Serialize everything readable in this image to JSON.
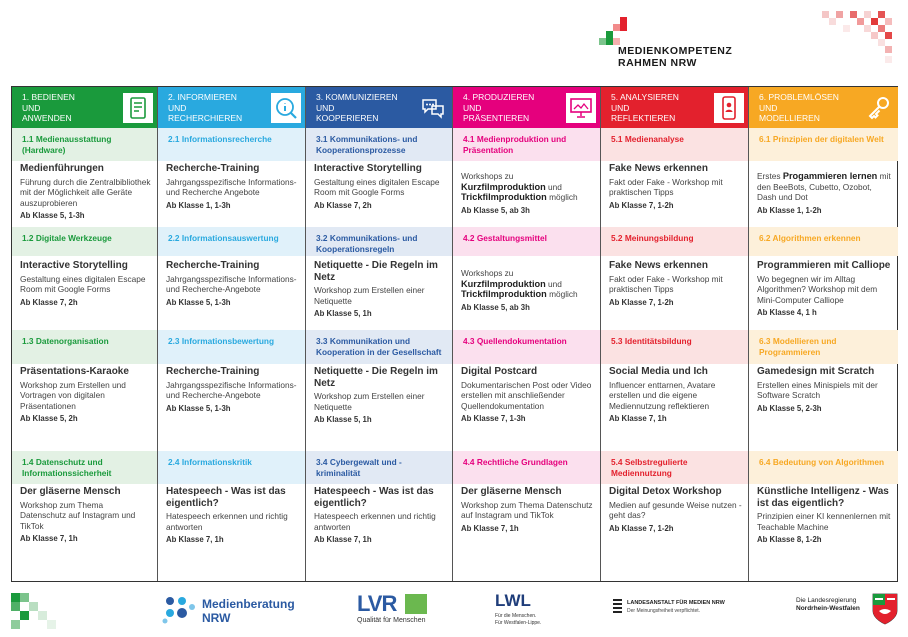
{
  "brand": {
    "line1": "MEDIENKOMPETENZ",
    "line2": "RAHMEN NRW"
  },
  "colors": {
    "green": "#1a9a3c",
    "green_light": "#e3f1e4",
    "blue": "#29a9df",
    "blue_light": "#e0f1fa",
    "navy": "#2b5aa2",
    "navy_light": "#e1e9f4",
    "magenta": "#e5007d",
    "magenta_light": "#fbe0ee",
    "red": "#e3212d",
    "red_light": "#fbe2e2",
    "orange": "#f7a823",
    "orange_light": "#fdf0da"
  },
  "columns": [
    {
      "header": [
        "1. BEDIENEN",
        "UND",
        "ANWENDEN"
      ],
      "icon": "tablet-icon",
      "subs": [
        "1.1 Medienausstattung (Hardware)",
        "1.2 Digitale Werkzeuge",
        "1.3 Datenorganisation",
        "1.4 Datenschutz und Informationssicherheit"
      ],
      "cards": [
        {
          "title": "Medienführungen",
          "desc": "Führung durch die Zentralbibliothek mit der Möglichkeit alle Geräte auszuprobieren",
          "age": "Ab Klasse 5, 1-3h"
        },
        {
          "title": "Interactive Storytelling",
          "desc": "Gestaltung eines digitalen Escape Room mit Google Forms",
          "age": "Ab Klasse 7, 2h"
        },
        {
          "title": "Präsentations-Karaoke",
          "desc": "Workshop zum Erstellen und Vortragen von digitalen Präsentationen",
          "age": "Ab Klasse 5, 2h"
        },
        {
          "title": "Der gläserne Mensch",
          "desc": "Workshop zum Thema Datenschutz auf Instagram und TikTok",
          "age": "Ab Klasse 7, 1h"
        }
      ]
    },
    {
      "header": [
        "2. INFORMIEREN",
        "UND",
        "RECHERCHIEREN"
      ],
      "icon": "magnifier-info-icon",
      "subs": [
        "2.1 Informationsrecherche",
        "2.2 Informationsauswertung",
        "2.3 Informationsbewertung",
        "2.4 Informationskritik"
      ],
      "cards": [
        {
          "title": "Recherche-Training",
          "desc": "Jahrgangsspezifische Informations- und Recherche Angebote",
          "age": "Ab Klasse 1, 1-3h"
        },
        {
          "title": "Recherche-Training",
          "desc": "Jahrgangsspezifische Informations- und Recherche-Angebote",
          "age": "Ab Klasse 5, 1-3h"
        },
        {
          "title": "Recherche-Training",
          "desc": "Jahrgangsspezifische Informations- und Recherche-Angebote",
          "age": "Ab Klasse 5, 1-3h"
        },
        {
          "title": "Hatespeech - Was ist das eigentlich?",
          "desc": "Hatespeech erkennen und richtig antworten",
          "age": "Ab Klasse 7, 1h"
        }
      ]
    },
    {
      "header": [
        "3. KOMMUNIZIEREN",
        "UND",
        "KOOPERIEREN"
      ],
      "icon": "speech-bubbles-icon",
      "subs": [
        "3.1 Kommunikations- und Kooperationsprozesse",
        "3.2 Kommunikations- und Kooperationsregeln",
        "3.3 Kommunikation und Kooperation in der Gesellschaft",
        "3.4 Cybergewalt und -kriminalität"
      ],
      "cards": [
        {
          "title": "Interactive Storytelling",
          "desc": "Gestaltung eines digitalen Escape Room mit Google Forms",
          "age": "Ab Klasse 7, 2h"
        },
        {
          "title": "Netiquette - Die Regeln im Netz",
          "desc": "Workshop zum Erstellen einer Netiquette",
          "age": "Ab Klasse 5, 1h"
        },
        {
          "title": "Netiquette - Die Regeln im Netz",
          "desc": "Workshop zum Erstellen einer Netiquette",
          "age": "Ab Klasse 5, 1h"
        },
        {
          "title": "Hatespeech - Was ist das eigentlich?",
          "desc": "Hatespeech erkennen und richtig antworten",
          "age": "Ab Klasse 7, 1h"
        }
      ]
    },
    {
      "header": [
        "4. PRODUZIEREN",
        "UND",
        "PRÄSENTIEREN"
      ],
      "icon": "presentation-screen-icon",
      "subs": [
        "4.1 Medienproduktion und Präsentation",
        "4.2 Gestaltungsmittel",
        "4.3 Quellendokumentation",
        "4.4 Rechtliche Grundlagen"
      ],
      "cards": [
        {
          "title": "",
          "desc_pre": "Workshops zu",
          "desc_bold1": "Kurzfilmproduktion",
          "desc_mid": "und",
          "desc_bold2": "Trickfilmproduktion",
          "desc_post": "möglich",
          "age": "Ab Klasse 5, ab 3h"
        },
        {
          "title": "",
          "desc_pre": "Workshops zu",
          "desc_bold1": "Kurzfilmproduktion",
          "desc_mid": "und",
          "desc_bold2": "Trickfilmproduktion",
          "desc_post": "möglich",
          "age": "Ab Klasse 5, ab 3h"
        },
        {
          "title": "Digital Postcard",
          "desc": "Dokumentarischen Post oder Video erstellen mit anschließender Quellendokumentation",
          "age": "Ab Klasse 7, 1-3h"
        },
        {
          "title": "Der gläserne Mensch",
          "desc": "Workshop zum Thema Datenschutz auf Instagram und TikTok",
          "age": "Ab Klasse 7, 1h"
        }
      ]
    },
    {
      "header": [
        "5. ANALYSIEREN",
        "UND",
        "REFLEKTIEREN"
      ],
      "icon": "smartphone-person-icon",
      "subs": [
        "5.1 Medienanalyse",
        "5.2 Meinungsbildung",
        "5.3 Identitätsbildung",
        "5.4 Selbstregulierte Mediennutzung"
      ],
      "cards": [
        {
          "title": "Fake News erkennen",
          "desc": "Fakt oder Fake - Workshop mit praktischen Tipps",
          "age": "Ab Klasse 7, 1-2h"
        },
        {
          "title": "Fake News erkennen",
          "desc": "Fakt oder Fake - Workshop mit praktischen Tipps",
          "age": "Ab Klasse 7, 1-2h"
        },
        {
          "title": "Social Media und Ich",
          "desc": "Influencer enttarnen, Avatare erstellen und die eigene Mediennutzung reflektieren",
          "age": "Ab Klasse 7, 1h"
        },
        {
          "title": "Digital Detox Workshop",
          "desc": "Medien auf gesunde Weise nutzen - geht das?",
          "age": "Ab Klasse 7, 1-2h"
        }
      ]
    },
    {
      "header": [
        "6. PROBLEMLÖSEN",
        "UND",
        "MODELLIEREN"
      ],
      "icon": "key-icon",
      "subs": [
        "6.1 Prinzipien der digitalen Welt",
        "6.2 Algorithmen erkennen",
        "6.3 Modellieren und Programmieren",
        "6.4 Bedeutung von Algorithmen"
      ],
      "cards": [
        {
          "title": "",
          "desc_pre": "Erstes",
          "desc_bold1": "Progammieren lernen",
          "desc_mid": "mit den BeeBots, Cubetto, Ozobot, Dash und Dot",
          "age": "Ab Klasse 1, 1-2h"
        },
        {
          "title": "Programmieren mit Calliope",
          "desc": "Wo begegnen wir im Alltag Algorithmen? Workshop mit dem Mini-Computer Calliope",
          "age": "Ab Klasse 4, 1 h"
        },
        {
          "title": "Gamedesign mit Scratch",
          "desc": "Erstellen eines Minispiels mit der Software Scratch",
          "age": "Ab Klasse 5, 2-3h"
        },
        {
          "title": "Künstliche Intelligenz - Was ist das eigentlich?",
          "desc": "Prinzipien einer KI kennenlernen mit Teachable Machine",
          "age": "Ab Klasse 8, 1-2h"
        }
      ]
    }
  ],
  "footer": {
    "medienberatung": [
      "Medienberatung",
      "NRW"
    ],
    "lvr": "LVR",
    "lvr_tag": "Qualität für Menschen",
    "lwl": "LWL",
    "lwl_tag": [
      "Für die Menschen.",
      "Für Westfalen-Lippe."
    ],
    "lfm": [
      "LANDESANSTALT FÜR MEDIEN NRW",
      "Der Meinungsfreiheit verpflichtet."
    ],
    "landesregierung": [
      "Die Landesregierung",
      "Nordrhein-Westfalen"
    ]
  }
}
